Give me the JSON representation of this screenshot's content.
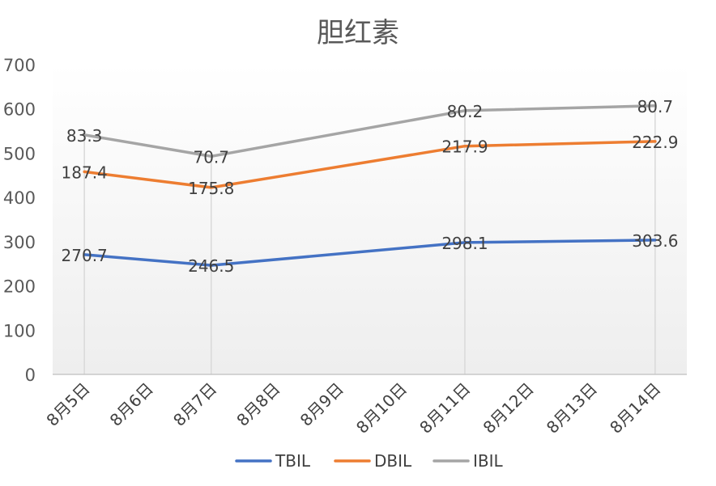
{
  "chart_data": {
    "type": "line",
    "title": "胆红素",
    "xlabel": "",
    "ylabel": "",
    "ylim": [
      0,
      700
    ],
    "yticks": [
      0,
      100,
      200,
      300,
      400,
      500,
      600,
      700
    ],
    "categories": [
      "8月5日",
      "8月6日",
      "8月7日",
      "8月8日",
      "8月9日",
      "8月10日",
      "8月11日",
      "8月12日",
      "8月13日",
      "8月14日"
    ],
    "stacked": true,
    "grid": "vertical drop lines at data points",
    "legend_position": "bottom",
    "series": [
      {
        "name": "TBIL",
        "color": "#4472C4",
        "points": [
          {
            "category": "8月5日",
            "value": 270.7
          },
          {
            "category": "8月7日",
            "value": 246.5
          },
          {
            "category": "8月11日",
            "value": 298.1
          },
          {
            "category": "8月14日",
            "value": 303.6
          }
        ],
        "labels": [
          "270.7",
          "246.5",
          "298.1",
          "303.6"
        ]
      },
      {
        "name": "DBIL",
        "color": "#ED7D31",
        "points": [
          {
            "category": "8月5日",
            "value": 187.4
          },
          {
            "category": "8月7日",
            "value": 175.8
          },
          {
            "category": "8月11日",
            "value": 217.9
          },
          {
            "category": "8月14日",
            "value": 222.9
          }
        ],
        "labels": [
          "187.4",
          "175.8",
          "217.9",
          "222.9"
        ]
      },
      {
        "name": "IBIL",
        "color": "#A5A5A5",
        "points": [
          {
            "category": "8月5日",
            "value": 83.3
          },
          {
            "category": "8月7日",
            "value": 70.7
          },
          {
            "category": "8月11日",
            "value": 80.2
          },
          {
            "category": "8月14日",
            "value": 80.7
          }
        ],
        "labels": [
          "83.3",
          "70.7",
          "80.2",
          "80.7"
        ]
      }
    ]
  }
}
